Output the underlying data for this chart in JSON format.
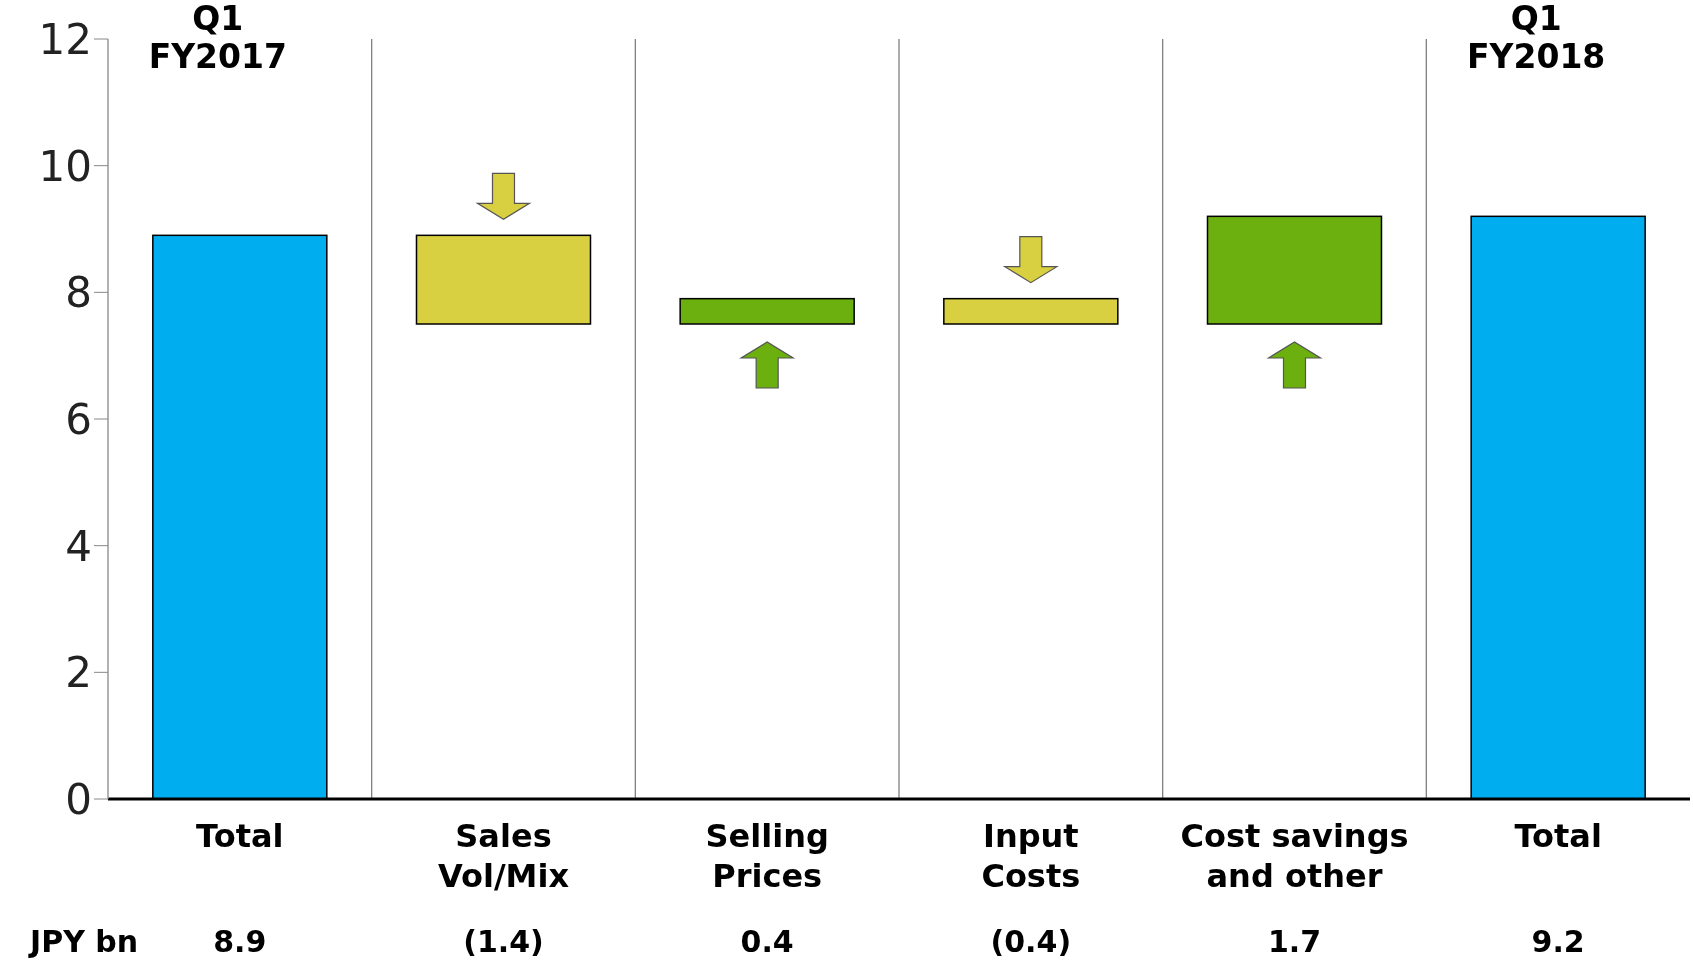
{
  "chart_data": {
    "type": "bar",
    "ylabel": "JPY bn",
    "categories": [
      "Total",
      "Sales Vol/Mix",
      "Selling Prices",
      "Input Costs",
      "Cost savings and other",
      "Total"
    ],
    "values": [
      8.9,
      -1.4,
      0.4,
      -0.4,
      1.7,
      9.2
    ],
    "base": [
      0,
      8.9,
      7.5,
      7.9,
      7.5,
      0
    ],
    "colors": [
      "#00aef0",
      "#d8d040",
      "#6cb010",
      "#d8d040",
      "#6cb010",
      "#00aef0"
    ],
    "value_labels": [
      "8.9",
      "(1.4)",
      "0.4",
      "(0.4)",
      "1.7",
      "9.2"
    ],
    "annotations": [
      "Q1 FY2017",
      "Q1 FY2018"
    ],
    "ylim": [
      0,
      12
    ],
    "yticks": [
      0,
      2,
      4,
      6,
      8,
      10,
      12
    ],
    "grid": "x"
  }
}
